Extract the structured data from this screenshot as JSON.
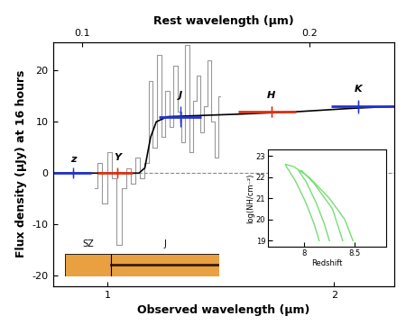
{
  "chart_data": {
    "type": "spectrum",
    "xlabel": "Observed wavelength (μm)",
    "ylabel": "Flux density (μJy) at 16 hours",
    "x2label": "Rest wavelength (μm)",
    "log": "x",
    "xlim": [
      0.845,
      2.4
    ],
    "xticks": [
      1,
      2
    ],
    "x2lim": [
      0.0913,
      0.259
    ],
    "x2ticks": [
      0.1,
      0.2
    ],
    "ylim": [
      -22,
      25.5
    ],
    "yticks": [
      -20,
      -10,
      0,
      10,
      20
    ],
    "hline": 0,
    "series": [
      {
        "type": "step",
        "color": "#999999",
        "x": [
          0.96,
          0.975,
          0.99,
          1.005,
          1.02,
          1.035,
          1.05,
          1.065,
          1.08,
          1.095,
          1.11,
          1.125,
          1.14,
          1.155,
          1.17,
          1.185,
          1.2,
          1.215,
          1.23,
          1.245,
          1.26,
          1.275,
          1.29,
          1.305,
          1.32,
          1.335,
          1.35,
          1.365,
          1.38,
          1.395,
          1.41
        ],
        "values": [
          -3,
          2,
          -6,
          4,
          -1,
          -14,
          -3,
          1,
          -2,
          3,
          -1,
          2,
          18,
          5,
          23,
          7,
          16,
          9,
          21,
          12,
          6,
          25,
          4,
          14,
          19,
          8,
          13,
          22,
          10,
          3,
          15
        ]
      },
      {
        "type": "line",
        "color": "#000000",
        "x": [
          0.845,
          1.1,
          1.12,
          1.14,
          1.16,
          1.2,
          1.5,
          1.8,
          2.1,
          2.4
        ],
        "values": [
          0,
          0,
          1,
          7,
          10,
          11,
          11.5,
          12,
          12.6,
          13
        ]
      }
    ],
    "photometry": {
      "labels": [
        "z",
        "Y",
        "J",
        "H",
        "K"
      ],
      "x": [
        0.9,
        1.03,
        1.25,
        1.65,
        2.15
      ],
      "values": [
        0,
        0.1,
        11,
        12,
        13
      ],
      "errors": [
        0.6,
        0.8,
        2,
        1,
        1.3
      ],
      "band_lo": [
        0.845,
        0.97,
        1.17,
        1.49,
        1.98
      ],
      "band_hi": [
        0.95,
        1.08,
        1.33,
        1.78,
        2.4
      ],
      "colors": [
        "#2233cc",
        "#dd3311",
        "#2233cc",
        "#dd3311",
        "#2233cc"
      ]
    },
    "image_strip": {
      "labels": [
        "SZ",
        "J"
      ]
    },
    "inset": {
      "type": "contour",
      "xlabel": "Redshift",
      "ylabel": "log(NH/cm⁻²)",
      "xlim": [
        7.65,
        8.8
      ],
      "xticks": [
        8,
        8.5
      ],
      "ylim": [
        18.7,
        23.3
      ],
      "yticks": [
        19,
        20,
        21,
        22,
        23
      ],
      "color": "#77dd77",
      "contours": [
        {
          "x": [
            8.15,
            8.1,
            8.02,
            7.92,
            7.83,
            7.82,
            7.9,
            8.05,
            8.25,
            8.4,
            8.48
          ],
          "values": [
            19,
            19.8,
            20.8,
            21.8,
            22.5,
            22.6,
            22.5,
            22.0,
            21.0,
            20,
            19
          ]
        },
        {
          "x": [
            8.25,
            8.2,
            8.12,
            8.02,
            7.95,
            7.98,
            8.1,
            8.28,
            8.38
          ],
          "values": [
            19,
            19.8,
            20.8,
            21.8,
            22.3,
            22.3,
            21.7,
            20.5,
            19
          ]
        }
      ]
    }
  }
}
